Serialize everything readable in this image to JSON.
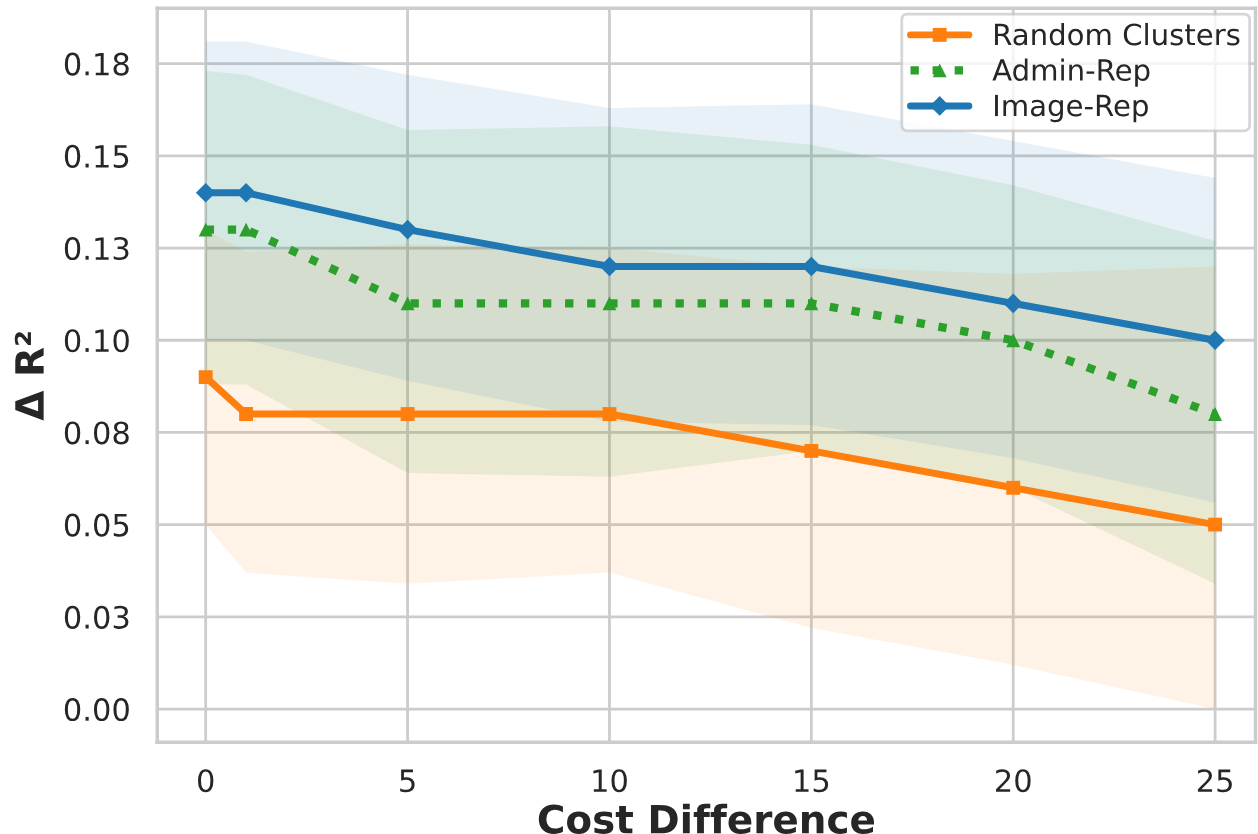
{
  "chart_data": {
    "type": "line",
    "xlabel": "Cost Difference",
    "ylabel": "Δ R²",
    "x": [
      0,
      1,
      5,
      10,
      15,
      20,
      25
    ],
    "series": [
      {
        "name": "Random Clusters",
        "color": "#ff7f0e",
        "marker": "square",
        "line_style": "solid",
        "values": [
          0.09,
          0.08,
          0.08,
          0.08,
          0.07,
          0.06,
          0.05
        ],
        "lower": [
          0.05,
          0.037,
          0.034,
          0.037,
          0.022,
          0.012,
          0.0
        ],
        "upper": [
          0.13,
          0.124,
          0.126,
          0.125,
          0.12,
          0.118,
          0.12
        ]
      },
      {
        "name": "Admin-Rep",
        "color": "#2ca02c",
        "marker": "triangle",
        "line_style": "dotted",
        "values": [
          0.13,
          0.13,
          0.11,
          0.11,
          0.11,
          0.1,
          0.08
        ],
        "lower": [
          0.088,
          0.088,
          0.064,
          0.063,
          0.07,
          0.06,
          0.034
        ],
        "upper": [
          0.173,
          0.172,
          0.157,
          0.158,
          0.153,
          0.142,
          0.127
        ]
      },
      {
        "name": "Image-Rep",
        "color": "#1f77b4",
        "marker": "diamond",
        "line_style": "solid",
        "values": [
          0.14,
          0.14,
          0.13,
          0.12,
          0.12,
          0.11,
          0.1
        ],
        "lower": [
          0.1,
          0.1,
          0.089,
          0.078,
          0.077,
          0.068,
          0.056
        ],
        "upper": [
          0.181,
          0.181,
          0.172,
          0.163,
          0.164,
          0.154,
          0.144
        ]
      }
    ],
    "xlim": [
      -1.2,
      26
    ],
    "ylim": [
      -0.009,
      0.19
    ],
    "xticks": [
      0,
      5,
      10,
      15,
      20,
      25
    ],
    "yticks": [
      {
        "value": 0.0,
        "label": "0.00"
      },
      {
        "value": 0.025,
        "label": "0.03"
      },
      {
        "value": 0.05,
        "label": "0.05"
      },
      {
        "value": 0.075,
        "label": "0.08"
      },
      {
        "value": 0.1,
        "label": "0.10"
      },
      {
        "value": 0.125,
        "label": "0.13"
      },
      {
        "value": 0.15,
        "label": "0.15"
      },
      {
        "value": 0.175,
        "label": "0.18"
      }
    ],
    "grid": true,
    "legend": "top right"
  }
}
